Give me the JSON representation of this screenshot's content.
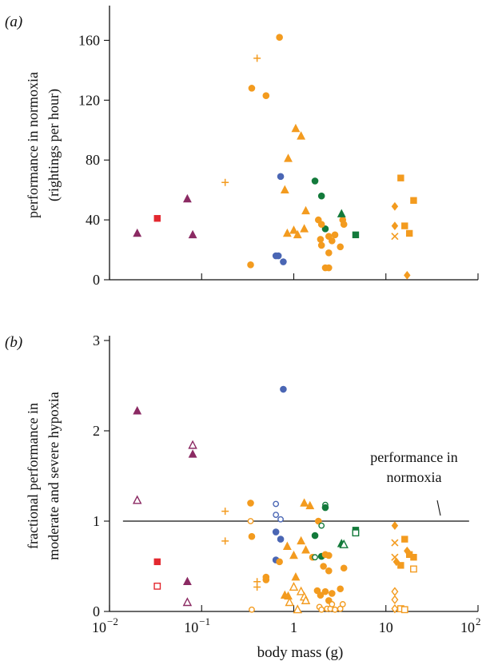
{
  "chart_data": [
    {
      "type": "scatter",
      "panel_label": "(a)",
      "ylabel": [
        "performance in normoxia",
        "(rightings per hour)"
      ],
      "ylim": [
        0,
        180
      ],
      "yticks": [
        "0",
        "40",
        "80",
        "120",
        "160"
      ],
      "ytick_values": [
        0,
        40,
        80,
        120,
        160
      ],
      "xscale": "log",
      "xlim": [
        0.01,
        100
      ],
      "grid": false,
      "series_styles": {
        "orange": "#f39b1f",
        "purple": "#8b2a63",
        "red": "#e3282f",
        "blue": "#4a66b4",
        "green": "#137a3b"
      },
      "points": [
        {
          "x": 0.02,
          "y": 31,
          "marker": "triangle",
          "color": "purple"
        },
        {
          "x": 0.033,
          "y": 41,
          "marker": "square",
          "color": "red"
        },
        {
          "x": 0.07,
          "y": 54,
          "marker": "triangle",
          "color": "purple"
        },
        {
          "x": 0.08,
          "y": 30,
          "marker": "triangle",
          "color": "purple"
        },
        {
          "x": 0.18,
          "y": 65,
          "marker": "plus",
          "color": "orange"
        },
        {
          "x": 0.4,
          "y": 148,
          "marker": "plus",
          "color": "orange"
        },
        {
          "x": 0.35,
          "y": 128,
          "marker": "circle",
          "color": "orange"
        },
        {
          "x": 0.34,
          "y": 10,
          "marker": "circle",
          "color": "orange"
        },
        {
          "x": 0.5,
          "y": 123,
          "marker": "circle",
          "color": "orange"
        },
        {
          "x": 0.7,
          "y": 162,
          "marker": "circle",
          "color": "orange"
        },
        {
          "x": 0.64,
          "y": 16,
          "marker": "circle",
          "color": "blue"
        },
        {
          "x": 0.68,
          "y": 16,
          "marker": "circle",
          "color": "blue"
        },
        {
          "x": 0.72,
          "y": 69,
          "marker": "circle",
          "color": "blue"
        },
        {
          "x": 0.77,
          "y": 12,
          "marker": "circle",
          "color": "blue"
        },
        {
          "x": 0.8,
          "y": 60,
          "marker": "triangle",
          "color": "orange"
        },
        {
          "x": 0.85,
          "y": 31,
          "marker": "triangle",
          "color": "orange"
        },
        {
          "x": 0.87,
          "y": 81,
          "marker": "triangle",
          "color": "orange"
        },
        {
          "x": 1.0,
          "y": 33,
          "marker": "triangle",
          "color": "orange"
        },
        {
          "x": 1.05,
          "y": 101,
          "marker": "triangle",
          "color": "orange"
        },
        {
          "x": 1.1,
          "y": 30,
          "marker": "triangle",
          "color": "orange"
        },
        {
          "x": 1.2,
          "y": 96,
          "marker": "triangle",
          "color": "orange"
        },
        {
          "x": 1.3,
          "y": 34,
          "marker": "triangle",
          "color": "orange"
        },
        {
          "x": 1.35,
          "y": 46,
          "marker": "triangle",
          "color": "orange"
        },
        {
          "x": 1.7,
          "y": 66,
          "marker": "circle",
          "color": "green"
        },
        {
          "x": 1.85,
          "y": 40,
          "marker": "circle",
          "color": "orange"
        },
        {
          "x": 2.0,
          "y": 56,
          "marker": "circle",
          "color": "green"
        },
        {
          "x": 2.2,
          "y": 34,
          "marker": "circle",
          "color": "green"
        },
        {
          "x": 2.0,
          "y": 37,
          "marker": "circle",
          "color": "orange"
        },
        {
          "x": 1.95,
          "y": 27,
          "marker": "circle",
          "color": "orange"
        },
        {
          "x": 2.0,
          "y": 23,
          "marker": "circle",
          "color": "orange"
        },
        {
          "x": 2.2,
          "y": 8,
          "marker": "circle",
          "color": "orange"
        },
        {
          "x": 2.4,
          "y": 8,
          "marker": "circle",
          "color": "orange"
        },
        {
          "x": 2.4,
          "y": 18,
          "marker": "circle",
          "color": "orange"
        },
        {
          "x": 2.4,
          "y": 29,
          "marker": "circle",
          "color": "orange"
        },
        {
          "x": 2.6,
          "y": 26,
          "marker": "circle",
          "color": "orange"
        },
        {
          "x": 2.8,
          "y": 30,
          "marker": "circle",
          "color": "orange"
        },
        {
          "x": 3.2,
          "y": 22,
          "marker": "circle",
          "color": "orange"
        },
        {
          "x": 3.4,
          "y": 40,
          "marker": "circle",
          "color": "orange"
        },
        {
          "x": 3.5,
          "y": 37,
          "marker": "circle",
          "color": "orange"
        },
        {
          "x": 3.3,
          "y": 44,
          "marker": "triangle",
          "color": "green"
        },
        {
          "x": 4.7,
          "y": 30,
          "marker": "square",
          "color": "green"
        },
        {
          "x": 12.5,
          "y": 49,
          "marker": "diamond",
          "color": "orange"
        },
        {
          "x": 12.5,
          "y": 36,
          "marker": "diamond",
          "color": "orange"
        },
        {
          "x": 12.5,
          "y": 29,
          "marker": "cross",
          "color": "orange"
        },
        {
          "x": 14.5,
          "y": 68,
          "marker": "square",
          "color": "orange"
        },
        {
          "x": 16.0,
          "y": 36,
          "marker": "square",
          "color": "orange"
        },
        {
          "x": 17.0,
          "y": 3,
          "marker": "diamond",
          "color": "orange"
        },
        {
          "x": 18.0,
          "y": 31,
          "marker": "square",
          "color": "orange"
        },
        {
          "x": 20.0,
          "y": 53,
          "marker": "square",
          "color": "orange"
        }
      ]
    },
    {
      "type": "scatter",
      "panel_label": "(b)",
      "ylabel": [
        "fractional performance in",
        "moderate and severe hypoxia"
      ],
      "xlabel": "body mass (g)",
      "ylim": [
        0,
        3
      ],
      "yticks": [
        "0",
        "1",
        "2",
        "3"
      ],
      "ytick_values": [
        0,
        1,
        2,
        3
      ],
      "xscale": "log",
      "xlim": [
        0.01,
        100
      ],
      "xtick_base": "10",
      "xtick_exponents": [
        "−2",
        "−1",
        "",
        "",
        "2"
      ],
      "xtick_plain": [
        "",
        "",
        "1",
        "10",
        ""
      ],
      "grid": false,
      "reference_line": {
        "y": 1,
        "x_range": [
          0.014,
          80
        ],
        "label": [
          "performance in",
          "normoxia"
        ]
      },
      "points": [
        {
          "x": 0.02,
          "y": 2.22,
          "marker": "triangle",
          "color": "purple"
        },
        {
          "x": 0.02,
          "y": 1.23,
          "marker": "triangle",
          "color": "purple",
          "hollow": true
        },
        {
          "x": 0.033,
          "y": 0.55,
          "marker": "square",
          "color": "red"
        },
        {
          "x": 0.033,
          "y": 0.28,
          "marker": "square",
          "color": "red",
          "hollow": true
        },
        {
          "x": 0.07,
          "y": 0.33,
          "marker": "triangle",
          "color": "purple"
        },
        {
          "x": 0.07,
          "y": 0.1,
          "marker": "triangle",
          "color": "purple",
          "hollow": true
        },
        {
          "x": 0.08,
          "y": 1.84,
          "marker": "triangle",
          "color": "purple",
          "hollow": true
        },
        {
          "x": 0.08,
          "y": 1.74,
          "marker": "triangle",
          "color": "purple"
        },
        {
          "x": 0.18,
          "y": 1.11,
          "marker": "plus",
          "color": "orange"
        },
        {
          "x": 0.18,
          "y": 0.78,
          "marker": "plus",
          "color": "orange"
        },
        {
          "x": 0.34,
          "y": 1.2,
          "marker": "circle",
          "color": "orange"
        },
        {
          "x": 0.34,
          "y": 1.0,
          "marker": "circle",
          "color": "orange",
          "hollow": true
        },
        {
          "x": 0.35,
          "y": 0.83,
          "marker": "circle",
          "color": "orange"
        },
        {
          "x": 0.35,
          "y": 0.02,
          "marker": "circle",
          "color": "orange",
          "hollow": true
        },
        {
          "x": 0.4,
          "y": 0.33,
          "marker": "plus",
          "color": "orange"
        },
        {
          "x": 0.4,
          "y": 0.27,
          "marker": "plus",
          "color": "orange"
        },
        {
          "x": 0.5,
          "y": 0.38,
          "marker": "circle",
          "color": "orange"
        },
        {
          "x": 0.5,
          "y": 0.35,
          "marker": "circle",
          "color": "orange"
        },
        {
          "x": 0.64,
          "y": 1.19,
          "marker": "circle",
          "color": "blue",
          "hollow": true
        },
        {
          "x": 0.64,
          "y": 1.07,
          "marker": "circle",
          "color": "blue",
          "hollow": true
        },
        {
          "x": 0.64,
          "y": 0.88,
          "marker": "circle",
          "color": "blue"
        },
        {
          "x": 0.64,
          "y": 0.57,
          "marker": "circle",
          "color": "blue"
        },
        {
          "x": 0.7,
          "y": 0.55,
          "marker": "circle",
          "color": "orange"
        },
        {
          "x": 0.72,
          "y": 1.02,
          "marker": "circle",
          "color": "blue",
          "hollow": true
        },
        {
          "x": 0.72,
          "y": 0.8,
          "marker": "circle",
          "color": "blue"
        },
        {
          "x": 0.77,
          "y": 2.46,
          "marker": "circle",
          "color": "blue"
        },
        {
          "x": 0.8,
          "y": 0.18,
          "marker": "triangle",
          "color": "orange"
        },
        {
          "x": 0.85,
          "y": 0.72,
          "marker": "triangle",
          "color": "orange"
        },
        {
          "x": 0.87,
          "y": 0.17,
          "marker": "triangle",
          "color": "orange"
        },
        {
          "x": 0.9,
          "y": 0.1,
          "marker": "triangle",
          "color": "orange",
          "hollow": true
        },
        {
          "x": 1.0,
          "y": 0.62,
          "marker": "triangle",
          "color": "orange"
        },
        {
          "x": 1.0,
          "y": 0.27,
          "marker": "triangle",
          "color": "orange",
          "hollow": true
        },
        {
          "x": 1.05,
          "y": 0.38,
          "marker": "triangle",
          "color": "orange"
        },
        {
          "x": 1.1,
          "y": 0.02,
          "marker": "triangle",
          "color": "orange",
          "hollow": true
        },
        {
          "x": 1.2,
          "y": 0.78,
          "marker": "triangle",
          "color": "orange"
        },
        {
          "x": 1.2,
          "y": 0.22,
          "marker": "triangle",
          "color": "orange",
          "hollow": true
        },
        {
          "x": 1.3,
          "y": 1.2,
          "marker": "triangle",
          "color": "orange"
        },
        {
          "x": 1.3,
          "y": 0.16,
          "marker": "triangle",
          "color": "orange",
          "hollow": true
        },
        {
          "x": 1.35,
          "y": 0.68,
          "marker": "triangle",
          "color": "orange"
        },
        {
          "x": 1.35,
          "y": 0.12,
          "marker": "triangle",
          "color": "orange",
          "hollow": true
        },
        {
          "x": 1.5,
          "y": 1.17,
          "marker": "triangle",
          "color": "orange"
        },
        {
          "x": 1.6,
          "y": 0.6,
          "marker": "circle",
          "color": "orange"
        },
        {
          "x": 1.7,
          "y": 0.84,
          "marker": "circle",
          "color": "green"
        },
        {
          "x": 1.7,
          "y": 0.6,
          "marker": "circle",
          "color": "green",
          "hollow": true
        },
        {
          "x": 1.8,
          "y": 0.23,
          "marker": "circle",
          "color": "orange"
        },
        {
          "x": 1.85,
          "y": 1.0,
          "marker": "circle",
          "color": "orange"
        },
        {
          "x": 1.9,
          "y": 0.05,
          "marker": "circle",
          "color": "orange",
          "hollow": true
        },
        {
          "x": 1.95,
          "y": 0.18,
          "marker": "circle",
          "color": "orange"
        },
        {
          "x": 2.0,
          "y": 0.95,
          "marker": "circle",
          "color": "green",
          "hollow": true
        },
        {
          "x": 2.0,
          "y": 0.61,
          "marker": "circle",
          "color": "green"
        },
        {
          "x": 2.0,
          "y": 0.02,
          "marker": "circle",
          "color": "orange",
          "hollow": true
        },
        {
          "x": 2.1,
          "y": 0.5,
          "marker": "circle",
          "color": "orange"
        },
        {
          "x": 2.2,
          "y": 1.18,
          "marker": "circle",
          "color": "green",
          "hollow": true
        },
        {
          "x": 2.2,
          "y": 1.15,
          "marker": "circle",
          "color": "green"
        },
        {
          "x": 2.2,
          "y": 0.63,
          "marker": "circle",
          "color": "orange"
        },
        {
          "x": 2.2,
          "y": 0.22,
          "marker": "circle",
          "color": "orange"
        },
        {
          "x": 2.3,
          "y": 0.03,
          "marker": "circle",
          "color": "orange",
          "hollow": true
        },
        {
          "x": 2.4,
          "y": 0.62,
          "marker": "circle",
          "color": "orange"
        },
        {
          "x": 2.4,
          "y": 0.45,
          "marker": "circle",
          "color": "orange"
        },
        {
          "x": 2.4,
          "y": 0.12,
          "marker": "circle",
          "color": "orange"
        },
        {
          "x": 2.5,
          "y": 0.03,
          "marker": "circle",
          "color": "orange",
          "hollow": true
        },
        {
          "x": 2.6,
          "y": 0.08,
          "marker": "circle",
          "color": "orange",
          "hollow": true
        },
        {
          "x": 2.6,
          "y": 0.2,
          "marker": "circle",
          "color": "orange"
        },
        {
          "x": 2.8,
          "y": 0.02,
          "marker": "circle",
          "color": "orange",
          "hollow": true
        },
        {
          "x": 3.2,
          "y": 0.25,
          "marker": "circle",
          "color": "orange"
        },
        {
          "x": 3.2,
          "y": 0.03,
          "marker": "circle",
          "color": "orange",
          "hollow": true
        },
        {
          "x": 3.3,
          "y": 0.75,
          "marker": "triangle",
          "color": "green"
        },
        {
          "x": 3.4,
          "y": 0.08,
          "marker": "circle",
          "color": "orange",
          "hollow": true
        },
        {
          "x": 3.5,
          "y": 0.48,
          "marker": "circle",
          "color": "orange"
        },
        {
          "x": 3.5,
          "y": 0.74,
          "marker": "triangle",
          "color": "green",
          "hollow": true
        },
        {
          "x": 4.7,
          "y": 0.9,
          "marker": "square",
          "color": "green"
        },
        {
          "x": 4.7,
          "y": 0.87,
          "marker": "square",
          "color": "green",
          "hollow": true
        },
        {
          "x": 12.5,
          "y": 0.95,
          "marker": "diamond",
          "color": "orange"
        },
        {
          "x": 12.5,
          "y": 0.76,
          "marker": "cross",
          "color": "orange"
        },
        {
          "x": 12.5,
          "y": 0.6,
          "marker": "cross",
          "color": "orange"
        },
        {
          "x": 12.5,
          "y": 0.22,
          "marker": "diamond",
          "color": "orange",
          "hollow": true
        },
        {
          "x": 12.5,
          "y": 0.13,
          "marker": "diamond",
          "color": "orange",
          "hollow": true
        },
        {
          "x": 12.5,
          "y": 0.03,
          "marker": "diamond",
          "color": "orange",
          "hollow": true
        },
        {
          "x": 13.0,
          "y": 0.55,
          "marker": "diamond",
          "color": "orange"
        },
        {
          "x": 14.5,
          "y": 0.51,
          "marker": "square",
          "color": "orange"
        },
        {
          "x": 14.5,
          "y": 0.03,
          "marker": "square",
          "color": "orange",
          "hollow": true
        },
        {
          "x": 16.0,
          "y": 0.8,
          "marker": "square",
          "color": "orange"
        },
        {
          "x": 16.0,
          "y": 0.02,
          "marker": "square",
          "color": "orange",
          "hollow": true
        },
        {
          "x": 17.0,
          "y": 0.67,
          "marker": "diamond",
          "color": "orange"
        },
        {
          "x": 18.0,
          "y": 0.63,
          "marker": "square",
          "color": "orange"
        },
        {
          "x": 20.0,
          "y": 0.6,
          "marker": "square",
          "color": "orange"
        },
        {
          "x": 20.0,
          "y": 0.47,
          "marker": "square",
          "color": "orange",
          "hollow": true
        }
      ]
    }
  ]
}
